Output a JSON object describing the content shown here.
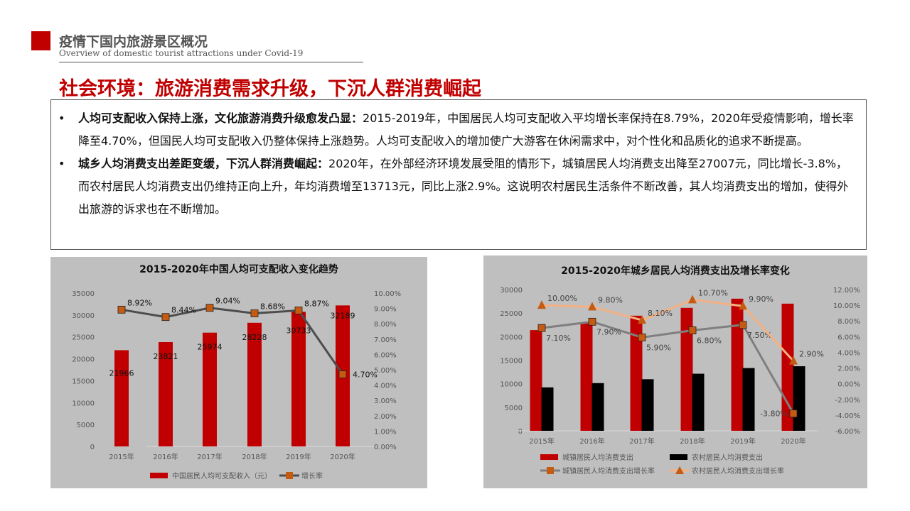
{
  "header": {
    "title": "疫情下国内旅游景区概况",
    "subtitle": "Overview of domestic tourist attractions under Covid-19"
  },
  "main_title": "社会环境：旅游消费需求升级，下沉人群消费崛起",
  "bullets": [
    {
      "bold": "人均可支配收入保持上涨，文化旅游消费升级愈发凸显：",
      "text": "2015-2019年，中国居民人均可支配收入平均增长率保持在8.79%，2020年受疫情影响，增长率降至4.70%，但国民人均可支配收入仍整体保持上涨趋势。人均可支配收入的增加使广大游客在休闲需求中，对个性化和品质化的追求不断提高。"
    },
    {
      "bold": "城乡人均消费支出差距变缓，下沉人群消费崛起：",
      "text": "2020年，在外部经济环境发展受阻的情形下，城镇居民人均消费支出降至27007元，同比增长-3.8%，而农村居民人均消费支出仍维持正向上升，年均消费增至13713元，同比上涨2.9%。这说明农村居民生活条件不断改善，其人均消费支出的增加，使得外出旅游的诉求也在不断增加。"
    }
  ],
  "chart_data": [
    {
      "type": "bar",
      "title": "2015-2020年中国人均可支配收入变化趋势",
      "categories": [
        "2015年",
        "2016年",
        "2017年",
        "2018年",
        "2019年",
        "2020年"
      ],
      "ylim": [
        0,
        35000
      ],
      "yticks": [
        "35000",
        "30000",
        "25000",
        "20000",
        "15000",
        "10000",
        "5000",
        "0"
      ],
      "y2lim": [
        0,
        10
      ],
      "y2ticks": [
        "10.00%",
        "9.00%",
        "8.00%",
        "7.00%",
        "6.00%",
        "5.00%",
        "4.00%",
        "3.00%",
        "2.00%",
        "1.00%",
        "0.00%"
      ],
      "series": [
        {
          "name": "中国居民人均可支配收入（元）",
          "kind": "bar",
          "axis": "left",
          "color": "#c00000",
          "values": [
            21966,
            23821,
            25974,
            28228,
            30733,
            32189
          ],
          "labels": [
            "21966",
            "23821",
            "25974",
            "28228",
            "30733",
            "32189"
          ]
        },
        {
          "name": "增长率",
          "kind": "line",
          "axis": "right",
          "color": "#4d4d4d",
          "marker": "square",
          "marker_color": "#c55a11",
          "values": [
            8.92,
            8.44,
            9.04,
            8.68,
            8.87,
            4.7
          ],
          "labels": [
            "8.92%",
            "8.44%",
            "9.04%",
            "8.68%",
            "8.87%",
            "4.70%"
          ]
        }
      ]
    },
    {
      "type": "bar",
      "title": "2015-2020年城乡居民人均消费支出及增长率变化",
      "categories": [
        "2015年",
        "2016年",
        "2017年",
        "2018年",
        "2019年",
        "2020年"
      ],
      "ylim": [
        0,
        30000
      ],
      "yticks": [
        "30000",
        "25000",
        "20000",
        "15000",
        "10000",
        "5000",
        "0"
      ],
      "y2lim": [
        -6,
        12
      ],
      "y2ticks": [
        "12.00%",
        "10.00%",
        "8.00%",
        "6.00%",
        "4.00%",
        "2.00%",
        "0.00%",
        "-2.00%",
        "-4.00%",
        "-6.00%"
      ],
      "series": [
        {
          "name": "城镇居民人均消费支出",
          "kind": "bar",
          "axis": "left",
          "color": "#c00000",
          "values": [
            21392,
            23079,
            24445,
            26112,
            28063,
            27007
          ]
        },
        {
          "name": "农村居民人均消费支出",
          "kind": "bar",
          "axis": "left",
          "color": "#000000",
          "values": [
            9223,
            10130,
            10955,
            12124,
            13328,
            13713
          ]
        },
        {
          "name": "城镇居民人均消费支出增长率",
          "kind": "line",
          "axis": "right",
          "color": "#7f7f7f",
          "marker": "square",
          "marker_color": "#c55a11",
          "values": [
            7.1,
            7.9,
            5.9,
            6.8,
            7.5,
            -3.8
          ],
          "labels": [
            "7.10%",
            "7.90%",
            "5.90%",
            "6.80%",
            "7.50%",
            "-3.80%"
          ]
        },
        {
          "name": "农村居民人均消费支出增长率",
          "kind": "line",
          "axis": "right",
          "color": "#f4b183",
          "marker": "triangle",
          "marker_color": "#c55a11",
          "values": [
            10.0,
            9.8,
            8.1,
            10.7,
            9.9,
            2.9
          ],
          "labels": [
            "10.00%",
            "9.80%",
            "8.10%",
            "10.70%",
            "9.90%",
            "2.90%"
          ]
        }
      ]
    }
  ]
}
